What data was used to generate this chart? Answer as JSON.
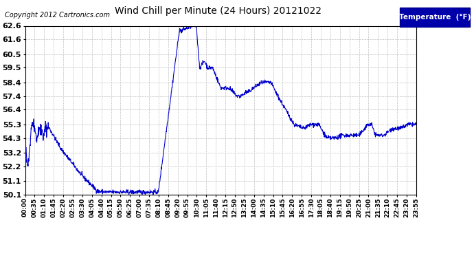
{
  "title": "Wind Chill per Minute (24 Hours) 20121022",
  "copyright": "Copyright 2012 Cartronics.com",
  "legend_label": "Temperature  (°F)",
  "background_color": "#ffffff",
  "plot_bg_color": "#ffffff",
  "line_color": "#0000cc",
  "grid_color": "#b0b0b0",
  "ylim": [
    50.1,
    62.6
  ],
  "yticks": [
    50.1,
    51.1,
    52.2,
    53.2,
    54.3,
    55.3,
    56.4,
    57.4,
    58.4,
    59.5,
    60.5,
    61.6,
    62.6
  ],
  "xtick_labels": [
    "00:00",
    "00:35",
    "01:10",
    "01:45",
    "02:20",
    "02:55",
    "03:30",
    "04:05",
    "04:40",
    "05:15",
    "05:50",
    "06:25",
    "07:00",
    "07:35",
    "08:10",
    "08:45",
    "09:20",
    "09:55",
    "10:30",
    "11:05",
    "11:40",
    "12:15",
    "12:50",
    "13:25",
    "14:00",
    "14:35",
    "15:10",
    "15:45",
    "16:20",
    "16:55",
    "17:30",
    "18:05",
    "18:40",
    "19:15",
    "19:50",
    "20:25",
    "21:00",
    "21:35",
    "22:10",
    "22:45",
    "23:20",
    "23:55"
  ]
}
